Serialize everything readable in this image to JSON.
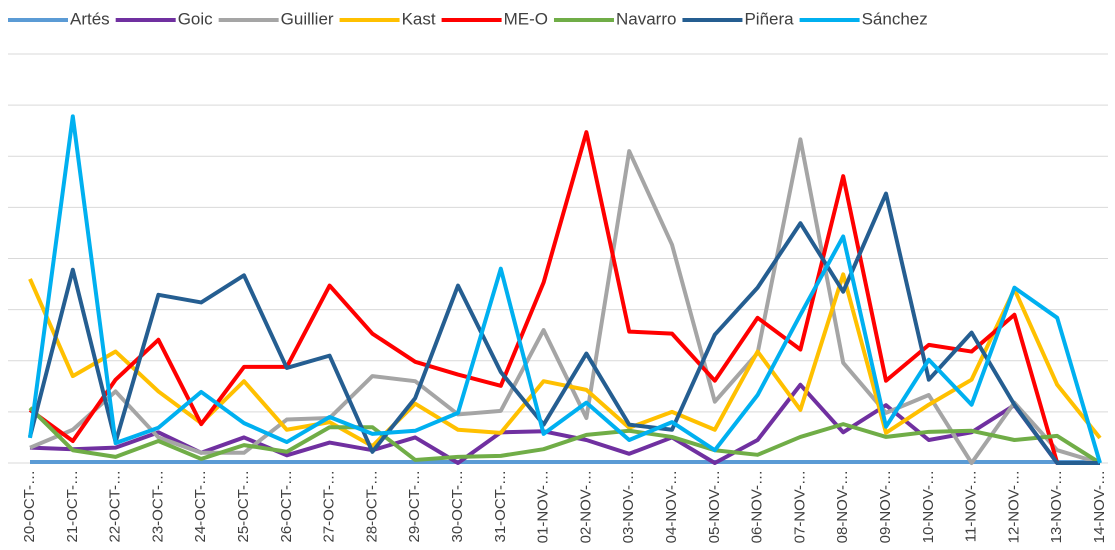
{
  "chart_data": {
    "type": "line",
    "categories": [
      "20-OCT-…",
      "21-OCT-…",
      "22-OCT-…",
      "23-OCT-…",
      "24-OCT-…",
      "25-OCT-…",
      "26-OCT-…",
      "27-OCT-…",
      "28-OCT-…",
      "29-OCT-…",
      "30-OCT-…",
      "31-OCT-…",
      "01-NOV-…",
      "02-NOV-…",
      "03-NOV-…",
      "04-NOV-…",
      "05-NOV-…",
      "06-NOV-…",
      "07-NOV-…",
      "08-NOV-…",
      "09-NOV-…",
      "10-NOV-…",
      "11-NOV-…",
      "12-NOV-…",
      "13-NOV-…",
      "14-NOV-…"
    ],
    "series": [
      {
        "name": "Artés",
        "color": "#5b9bd5",
        "values": [
          0.02,
          0.02,
          0.02,
          0.02,
          0.02,
          0.02,
          0.02,
          0.02,
          0.02,
          0.02,
          0.02,
          0.02,
          0.02,
          0.02,
          0.02,
          0.02,
          0.02,
          0.02,
          0.02,
          0.02,
          0.02,
          0.02,
          0.02,
          0.02,
          0.02,
          0.02
        ]
      },
      {
        "name": "Goic",
        "color": "#7030a0",
        "values": [
          0.3,
          0.27,
          0.3,
          0.6,
          0.2,
          0.5,
          0.15,
          0.4,
          0.25,
          0.5,
          0,
          0.6,
          0.62,
          0.45,
          0.18,
          0.5,
          0,
          0.45,
          1.53,
          0.6,
          1.13,
          0.45,
          0.6,
          1.13,
          0,
          0
        ]
      },
      {
        "name": "Guillier",
        "color": "#a5a5a5",
        "values": [
          0.3,
          0.65,
          1.4,
          0.5,
          0.2,
          0.2,
          0.85,
          0.88,
          1.7,
          1.6,
          0.95,
          1.02,
          2.6,
          0.88,
          6.1,
          4.27,
          1.2,
          2.15,
          6.33,
          1.96,
          0.98,
          1.33,
          0,
          1.18,
          0.25,
          0
        ]
      },
      {
        "name": "Kast",
        "color": "#ffc000",
        "values": [
          3.6,
          1.7,
          2.18,
          1.4,
          0.78,
          1.6,
          0.65,
          0.8,
          0.33,
          1.16,
          0.65,
          0.59,
          1.6,
          1.43,
          0.69,
          1.0,
          0.65,
          2.18,
          1.04,
          3.69,
          0.59,
          1.14,
          1.63,
          3.4,
          1.53,
          0.49
        ]
      },
      {
        "name": "ME-O",
        "color": "#ff0000",
        "values": [
          1.04,
          0.43,
          1.63,
          2.41,
          0.76,
          1.88,
          1.88,
          3.47,
          2.53,
          1.98,
          1.73,
          1.51,
          3.53,
          6.47,
          2.57,
          2.53,
          1.61,
          2.84,
          2.22,
          5.61,
          1.61,
          2.31,
          2.18,
          2.9,
          0,
          0
        ]
      },
      {
        "name": "Navarro",
        "color": "#70ad47",
        "values": [
          1.08,
          0.25,
          0.12,
          0.43,
          0.08,
          0.35,
          0.22,
          0.7,
          0.7,
          0.06,
          0.12,
          0.14,
          0.27,
          0.55,
          0.63,
          0.51,
          0.25,
          0.16,
          0.51,
          0.76,
          0.51,
          0.61,
          0.63,
          0.45,
          0.53,
          0
        ]
      },
      {
        "name": "Piñera",
        "color": "#255e91",
        "values": [
          0.51,
          3.78,
          0.41,
          3.29,
          3.14,
          3.67,
          1.86,
          2.1,
          0.22,
          1.27,
          3.47,
          1.78,
          0.75,
          2.14,
          0.75,
          0.65,
          2.51,
          3.43,
          4.69,
          3.35,
          5.27,
          1.63,
          2.55,
          1.14,
          0,
          0
        ]
      },
      {
        "name": "Sánchez",
        "color": "#00b0f0",
        "values": [
          0.49,
          6.78,
          0.39,
          0.69,
          1.39,
          0.78,
          0.41,
          0.9,
          0.57,
          0.63,
          0.98,
          3.8,
          0.57,
          1.18,
          0.45,
          0.8,
          0.25,
          1.33,
          2.9,
          4.43,
          0.71,
          2.02,
          1.14,
          3.43,
          2.84,
          0
        ]
      }
    ],
    "ylim": [
      0,
      8
    ],
    "yticks": [
      0,
      1,
      2,
      3,
      4,
      5,
      6,
      7,
      8
    ],
    "grid": true,
    "legend": "top"
  }
}
